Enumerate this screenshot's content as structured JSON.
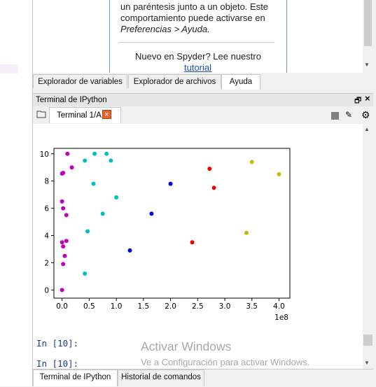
{
  "help": {
    "line1": "un paréntesis junto a un objeto. Este",
    "line2": "comportamiento puede activarse en",
    "line3": "Preferencias > Ayuda.",
    "line4": "Nuevo en Spyder? Lee nuestro",
    "link": "tutorial"
  },
  "top_tabs": [
    "Explorador de variables",
    "Explorador de archivos",
    "Ayuda"
  ],
  "pane_title": "Terminal de IPython",
  "terminal_tab": "Terminal 1/A",
  "console": {
    "prompt1": "In [10]:",
    "prompt2": "In [10]:"
  },
  "watermark": {
    "title": "Activar Windows",
    "subtitle": "Ve a Configuración para activar Windows."
  },
  "bottom_tabs": [
    "Terminal de IPython",
    "Historial de comandos"
  ],
  "chart_data": {
    "type": "scatter",
    "title": "",
    "xlabel": "",
    "ylabel": "",
    "x_offset_label": "1e8",
    "xlim": [
      -0.15,
      4.2
    ],
    "ylim": [
      -0.6,
      10.4
    ],
    "xticks": [
      "0.0",
      "0.5",
      "1.0",
      "1.5",
      "2.0",
      "2.5",
      "3.0",
      "3.5",
      "4.0"
    ],
    "yticks": [
      "0",
      "2",
      "4",
      "6",
      "8",
      "10"
    ],
    "grid": false,
    "series": [
      {
        "color": "#bf00bf",
        "x": [
          0.1,
          0.02,
          0.0,
          0.18,
          0.0,
          0.02,
          0.08,
          0.0,
          0.08,
          0.02,
          0.05,
          0.02,
          0.0
        ],
        "y": [
          10.0,
          8.6,
          8.55,
          9.0,
          6.5,
          6.0,
          5.5,
          3.5,
          3.6,
          3.2,
          2.5,
          1.9,
          0.0
        ]
      },
      {
        "color": "#00bfbf",
        "x": [
          0.6,
          0.82,
          0.42,
          0.9,
          0.58,
          1.0,
          0.75,
          0.47,
          0.42
        ],
        "y": [
          10.0,
          10.0,
          9.5,
          9.5,
          7.8,
          6.8,
          5.6,
          4.3,
          1.2
        ]
      },
      {
        "color": "#0000e0",
        "x": [
          2.0,
          1.65,
          1.25
        ],
        "y": [
          7.8,
          5.6,
          2.9
        ]
      },
      {
        "color": "#f00000",
        "x": [
          2.72,
          2.8,
          2.4
        ],
        "y": [
          8.9,
          7.5,
          3.5
        ]
      },
      {
        "color": "#bfbf00",
        "x": [
          3.5,
          4.0,
          3.4
        ],
        "y": [
          9.4,
          8.5,
          4.2
        ]
      }
    ]
  }
}
